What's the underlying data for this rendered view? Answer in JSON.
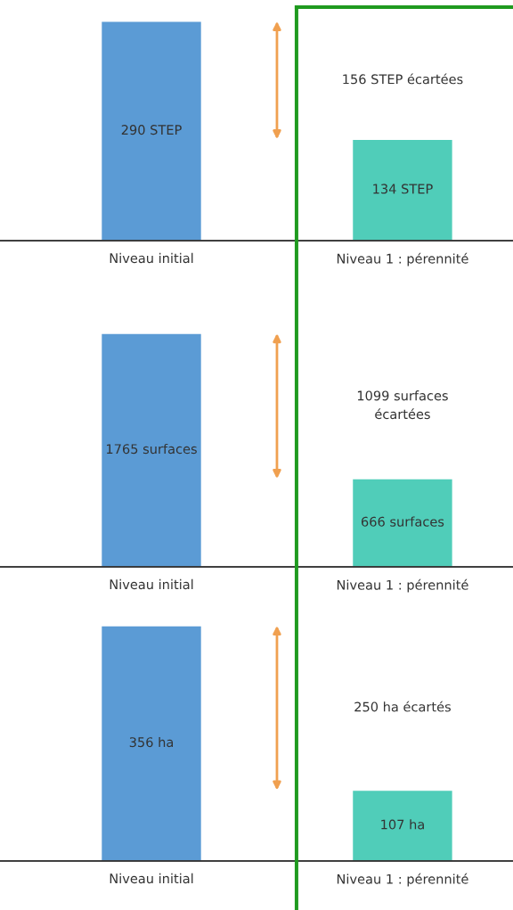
{
  "chart_data": [
    {
      "type": "bar",
      "categories": [
        "Niveau initial",
        "Niveau 1 : pérennité"
      ],
      "values": [
        290,
        134
      ],
      "colors": [
        "#5b9bd5",
        "#50cdb9"
      ],
      "value_labels": [
        "290 STEP",
        "134 STEP"
      ],
      "annotations": [
        "156 STEP écartées"
      ]
    },
    {
      "type": "bar",
      "categories": [
        "Niveau initial",
        "Niveau 1 : pérennité"
      ],
      "values": [
        1765,
        666
      ],
      "colors": [
        "#5b9bd5",
        "#50cdb9"
      ],
      "value_labels": [
        "1765 surfaces",
        "666 surfaces"
      ],
      "annotations": [
        "1099 surfaces\nécartées"
      ]
    },
    {
      "type": "bar",
      "categories": [
        "Niveau initial",
        "Niveau 1 : pérennité"
      ],
      "values": [
        356,
        107
      ],
      "colors": [
        "#5b9bd5",
        "#50cdb9"
      ],
      "value_labels": [
        "356 ha",
        "107 ha"
      ],
      "annotations": [
        "250 ha écartés"
      ]
    }
  ]
}
